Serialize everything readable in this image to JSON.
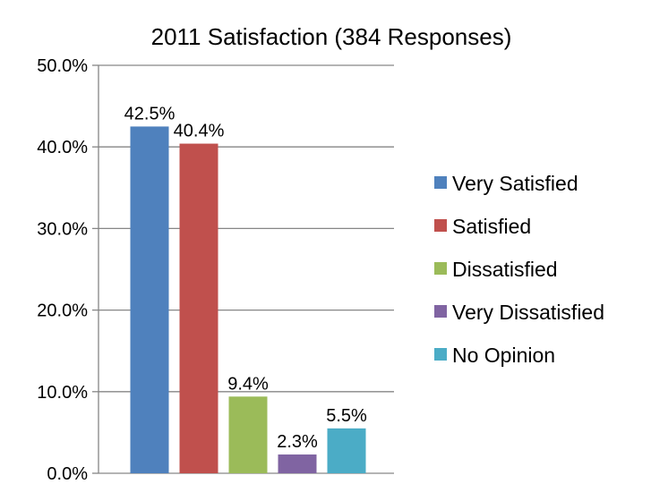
{
  "chart_data": {
    "type": "bar",
    "title": "2011 Satisfaction (384 Responses)",
    "xlabel": "",
    "ylabel": "",
    "categories": [
      "Very Satisfied",
      "Satisfied",
      "Dissatisfied",
      "Very Dissatisfied",
      "No Opinion"
    ],
    "values": [
      42.5,
      40.4,
      9.4,
      2.3,
      5.5
    ],
    "data_labels": [
      "42.5%",
      "40.4%",
      "9.4%",
      "2.3%",
      "5.5%"
    ],
    "colors": [
      "#4f81bd",
      "#c0504d",
      "#9bbb59",
      "#8064a2",
      "#4bacc6"
    ],
    "ylim": [
      0,
      50
    ],
    "y_ticks": [
      0,
      10,
      20,
      30,
      40,
      50
    ],
    "y_tick_labels": [
      "0.0%",
      "10.0%",
      "20.0%",
      "30.0%",
      "40.0%",
      "50.0%"
    ],
    "grid": true,
    "legend_position": "right"
  }
}
